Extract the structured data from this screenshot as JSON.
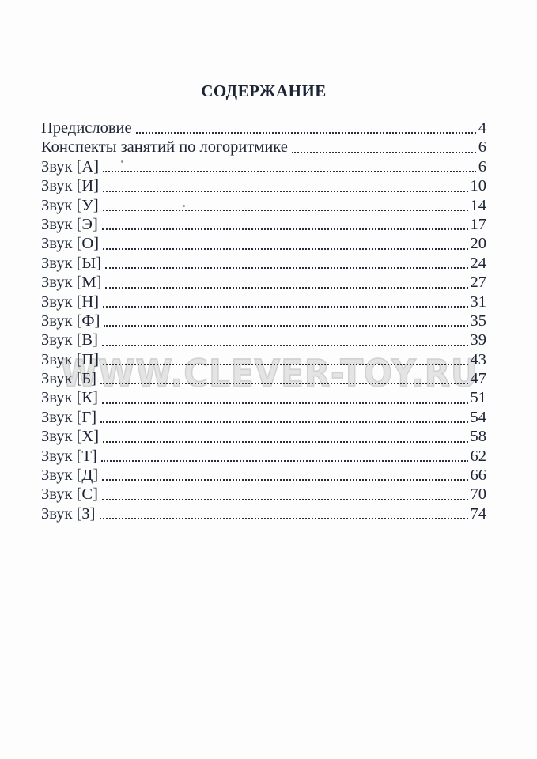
{
  "page": {
    "title": "СОДЕРЖАНИЕ",
    "watermark": "WWW.CLEVER-TOY.RU",
    "text_color": "#1c2434",
    "watermark_color": "#e4e4e4",
    "entries": [
      {
        "label": "Предисловие",
        "page": "4"
      },
      {
        "label": "Конспекты занятий по логоритмике",
        "page": "6"
      },
      {
        "label": "Звук [А]",
        "page": "6"
      },
      {
        "label": "Звук [И]",
        "page": "10"
      },
      {
        "label": "Звук [У]",
        "page": "14"
      },
      {
        "label": "Звук [Э]",
        "page": "17"
      },
      {
        "label": "Звук [О]",
        "page": "20"
      },
      {
        "label": "Звук [Ы]",
        "page": "24"
      },
      {
        "label": "Звук [М]",
        "page": "27"
      },
      {
        "label": "Звук [Н]",
        "page": "31"
      },
      {
        "label": "Звук [Ф]",
        "page": "35"
      },
      {
        "label": "Звук [В]",
        "page": "39"
      },
      {
        "label": "Звук [П]",
        "page": "43"
      },
      {
        "label": "Звук [Б]",
        "page": "47"
      },
      {
        "label": "Звук [К]",
        "page": "51"
      },
      {
        "label": "Звук [Г]",
        "page": "54"
      },
      {
        "label": "Звук [Х]",
        "page": "58"
      },
      {
        "label": "Звук [Т]",
        "page": "62"
      },
      {
        "label": "Звук [Д]",
        "page": "66"
      },
      {
        "label": "Звук [С]",
        "page": "70"
      },
      {
        "label": "Звук [З]",
        "page": "74"
      }
    ]
  }
}
